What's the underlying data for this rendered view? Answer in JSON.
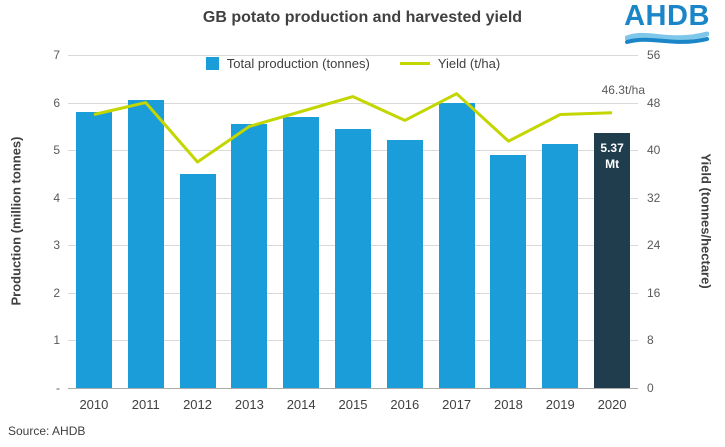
{
  "title": "GB potato production and harvested yield",
  "logo": {
    "text": "AHDB",
    "color": "#1A86C8"
  },
  "source": "Source: AHDB",
  "annotation": "46.3t/ha",
  "bar_label": {
    "value": "5.37",
    "unit": "Mt"
  },
  "chart_data": {
    "type": "bar",
    "title": "GB potato production and harvested yield",
    "categories": [
      "2010",
      "2011",
      "2012",
      "2013",
      "2014",
      "2015",
      "2016",
      "2017",
      "2018",
      "2019",
      "2020"
    ],
    "series": [
      {
        "name": "Total production (tonnes)",
        "type": "bar",
        "axis": "left",
        "color": "#1B9DD9",
        "highlight_index": 10,
        "highlight_color": "#1F3D4C",
        "values": [
          5.8,
          6.05,
          4.5,
          5.55,
          5.7,
          5.45,
          5.22,
          6.0,
          4.9,
          5.12,
          5.37
        ]
      },
      {
        "name": "Yield (t/ha)",
        "type": "line",
        "axis": "right",
        "color": "#C4D600",
        "values": [
          46,
          48,
          38,
          44,
          46.5,
          49,
          45,
          49.5,
          41.5,
          46,
          46.3
        ]
      }
    ],
    "left_axis": {
      "label": "Production (million tonnes)",
      "min": 0,
      "max": 7,
      "ticks": [
        "7",
        "6",
        "5",
        "4",
        "3",
        "2",
        "1",
        "-"
      ]
    },
    "right_axis": {
      "label": "Yield (tonnes/hectare)",
      "min": 0,
      "max": 56,
      "ticks": [
        "56",
        "48",
        "40",
        "32",
        "24",
        "16",
        "8",
        "0"
      ]
    },
    "grid": true,
    "legend_position": "top"
  }
}
